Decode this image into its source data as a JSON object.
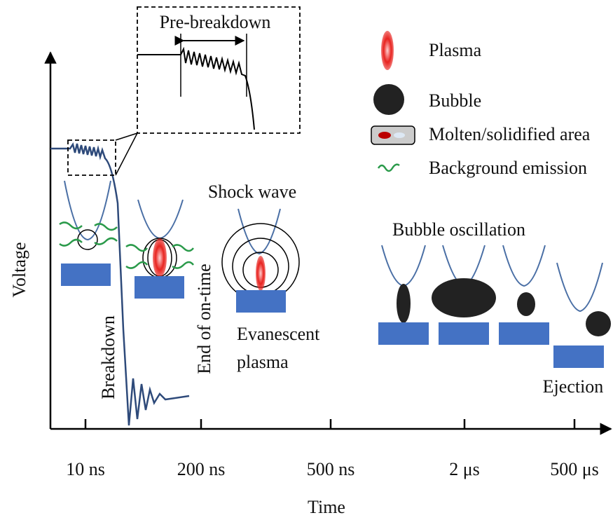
{
  "axes": {
    "x_label": "Time",
    "y_label": "Voltage",
    "x_ticks": [
      "10 ns",
      "200 ns",
      "500 ns",
      "2 μs",
      "500 μs"
    ]
  },
  "legend": [
    {
      "label": "Plasma"
    },
    {
      "label": "Bubble"
    },
    {
      "label": "Molten/solidified area"
    },
    {
      "label": "Background emission"
    }
  ],
  "annotations": {
    "pre_breakdown": "Pre-breakdown",
    "shock_wave": "Shock wave",
    "bubble_oscillation": "Bubble oscillation",
    "breakdown": "Breakdown",
    "end_of_on_time": "End of on-time",
    "evanescent_plasma": [
      "Evanescent",
      "plasma"
    ],
    "ejection": "Ejection"
  }
}
